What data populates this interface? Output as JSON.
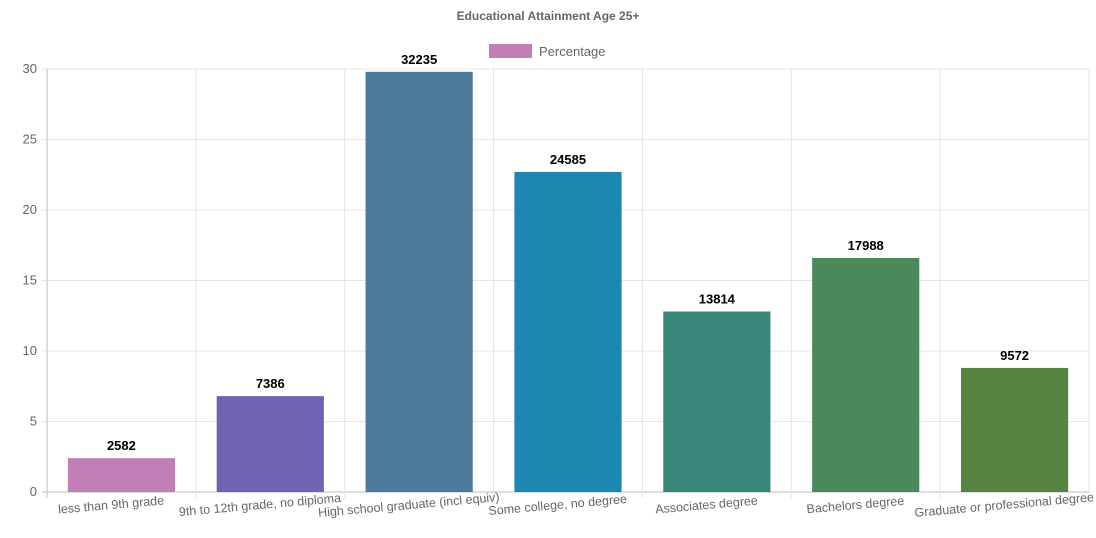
{
  "chart_data": {
    "type": "bar",
    "title": "Educational Attainment Age 25+",
    "legend": {
      "label": "Percentage",
      "color": "#c27fb5",
      "position": "top"
    },
    "categories": [
      "less than 9th grade",
      "9th to 12th grade, no diploma",
      "High school graduate (incl equiv)",
      "Some college, no degree",
      "Associates degree",
      "Bachelors degree",
      "Graduate or professional degree"
    ],
    "series": [
      {
        "name": "Percentage",
        "values": [
          2.4,
          6.8,
          29.8,
          22.7,
          12.8,
          16.6,
          8.8
        ],
        "data_labels": [
          "2582",
          "7386",
          "32235",
          "24585",
          "13814",
          "17988",
          "9572"
        ],
        "colors": [
          "#c27fb5",
          "#7262b2",
          "#4b7a9b",
          "#1e87b1",
          "#3a857a",
          "#4a8a5a",
          "#588441"
        ]
      }
    ],
    "ylim": [
      0,
      30
    ],
    "yticks": [
      0,
      5,
      10,
      15,
      20,
      25,
      30
    ],
    "grid": true
  }
}
